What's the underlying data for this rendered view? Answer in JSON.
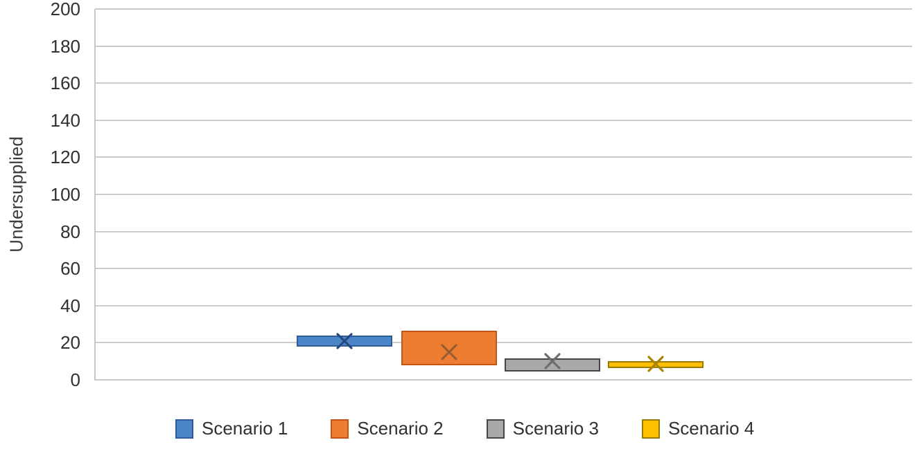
{
  "chart_data": {
    "type": "box",
    "title": "",
    "xlabel": "",
    "ylabel": "Undersupplied",
    "ylim": [
      0,
      200
    ],
    "yticks": [
      200,
      180,
      160,
      140,
      120,
      100,
      80,
      60,
      40,
      20,
      0
    ],
    "grid": "horizontal gridlines at every 20 units",
    "legend_position": "bottom",
    "x_axis_labels": "none",
    "series": [
      {
        "name": "Scenario 1",
        "box_low": 18,
        "box_high": 24,
        "mean": 21,
        "fill": "#4d86c6",
        "border": "#2d5c96",
        "mean_color": "#244a80"
      },
      {
        "name": "Scenario 2",
        "box_low": 8,
        "box_high": 26.5,
        "mean": 15,
        "fill": "#ed7d31",
        "border": "#c55511",
        "mean_color": "#9a5c33"
      },
      {
        "name": "Scenario 3",
        "box_low": 4.5,
        "box_high": 11.5,
        "mean": 10,
        "fill": "#a9a9a9",
        "border": "#454545",
        "mean_color": "#6d6d6d"
      },
      {
        "name": "Scenario 4",
        "box_low": 6.5,
        "box_high": 10,
        "mean": 8.5,
        "fill": "#ffc000",
        "border": "#9c7a00",
        "mean_color": "#a98400"
      }
    ],
    "colors": {
      "gridline": "#cccccc",
      "axis_line": "#c6c6c6",
      "text": "#303030"
    }
  }
}
